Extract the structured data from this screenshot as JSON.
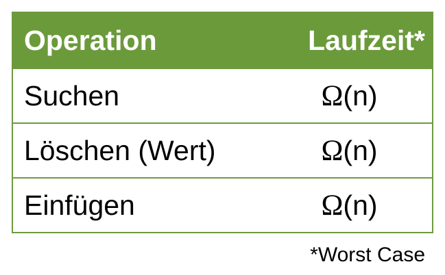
{
  "table": {
    "header": {
      "operation": "Operation",
      "runtime": "Laufzeit*"
    },
    "rows": [
      {
        "operation": "Suchen",
        "runtime_symbol": "Ω",
        "runtime_arg": "(n)"
      },
      {
        "operation": "Löschen (Wert)",
        "runtime_symbol": "Ω",
        "runtime_arg": "(n)"
      },
      {
        "operation": "Einfügen",
        "runtime_symbol": "Ω",
        "runtime_arg": "(n)"
      }
    ]
  },
  "footnote": "*Worst Case",
  "colors": {
    "header_background": "#6b9a3b",
    "border": "#6e9a3e",
    "header_text": "#ffffff"
  }
}
